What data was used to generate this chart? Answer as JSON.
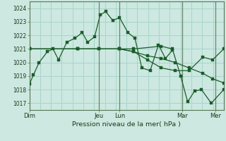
{
  "title": "",
  "xlabel": "Pression niveau de la mer( hPa )",
  "ylim": [
    1016.5,
    1024.5
  ],
  "bg_color": "#cce8e0",
  "grid_color": "#a8d4cc",
  "line_color": "#1a5c2a",
  "vline_color": "#557755",
  "series1_x": [
    0.0,
    0.15,
    0.35,
    0.65,
    0.85,
    1.05,
    1.35,
    1.65,
    1.9,
    2.1,
    2.35,
    2.55,
    2.75,
    3.0,
    3.25,
    3.55,
    3.8,
    4.05,
    4.35,
    4.65,
    4.9,
    5.15
  ],
  "series1_y": [
    1018.4,
    1019.1,
    1020.0,
    1020.8,
    1021.0,
    1020.2,
    1021.5,
    1021.8,
    1022.2,
    1021.5,
    1021.9,
    1023.5,
    1023.75,
    1023.1,
    1023.3,
    1022.2,
    1021.8,
    1019.6,
    1019.4,
    1021.3,
    1020.3,
    1020.9
  ],
  "series2_x": [
    0.0,
    1.75,
    2.5,
    3.25,
    3.75,
    4.25,
    4.75,
    5.25,
    5.75,
    6.25,
    6.6,
    7.0
  ],
  "series2_y": [
    1021.0,
    1021.0,
    1021.0,
    1021.0,
    1020.8,
    1020.5,
    1020.3,
    1020.0,
    1019.6,
    1019.2,
    1018.8,
    1018.5
  ],
  "series3_x": [
    0.0,
    1.75,
    2.5,
    3.25,
    3.75,
    4.25,
    4.75,
    5.25,
    5.75,
    6.25,
    6.6,
    7.0
  ],
  "series3_y": [
    1021.0,
    1021.0,
    1021.0,
    1021.0,
    1020.8,
    1020.2,
    1019.6,
    1019.4,
    1019.4,
    1020.4,
    1020.2,
    1021.0
  ],
  "series4_x": [
    0.0,
    1.75,
    3.25,
    3.75,
    4.75,
    5.15,
    5.45,
    5.7,
    5.95,
    6.2,
    6.55,
    7.0
  ],
  "series4_y": [
    1021.0,
    1021.0,
    1021.0,
    1021.0,
    1021.2,
    1021.0,
    1019.0,
    1017.1,
    1017.9,
    1018.0,
    1017.0,
    1018.0
  ],
  "xtick_positions": [
    0.0,
    2.5,
    3.25,
    5.5,
    6.7
  ],
  "xtick_labels": [
    "Dim",
    "Jeu",
    "Lun",
    "Mar",
    "Mer"
  ],
  "yticks": [
    1017,
    1018,
    1019,
    1020,
    1021,
    1022,
    1023,
    1024
  ],
  "vlines_x": [
    2.5,
    3.25,
    5.5,
    6.7
  ]
}
